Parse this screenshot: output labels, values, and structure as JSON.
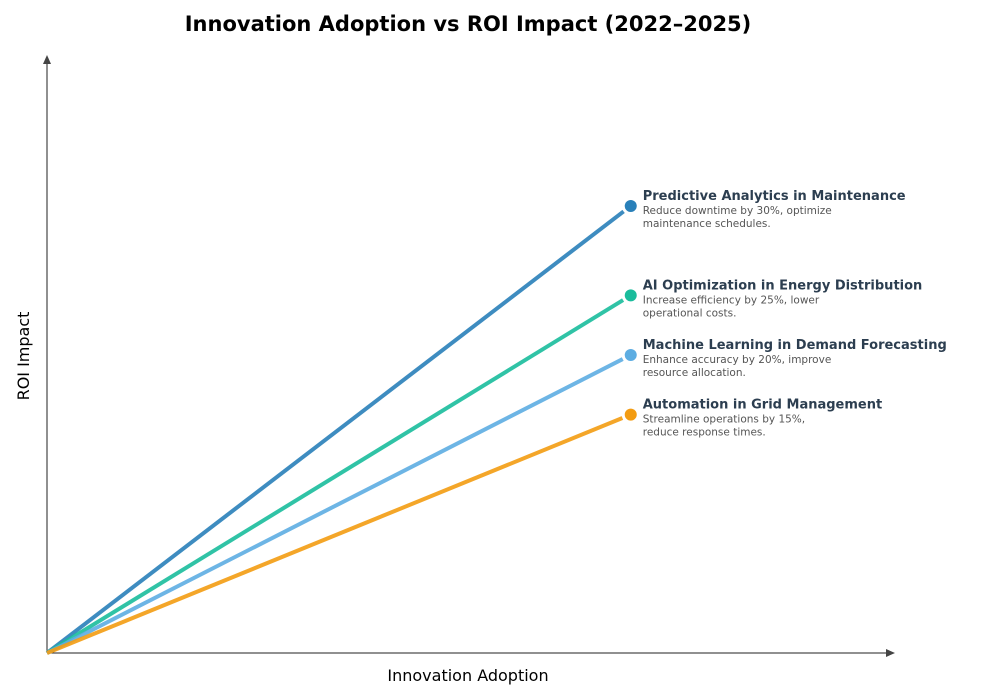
{
  "chart_data": {
    "type": "line",
    "title": "Innovation Adoption vs ROI Impact (2022–2025)",
    "xlabel": "Innovation Adoption",
    "ylabel": "ROI Impact",
    "xlim": [
      0,
      10
    ],
    "ylim": [
      0,
      10
    ],
    "grid": false,
    "ticks": false,
    "series": [
      {
        "name": "Predictive Analytics in Maintenance",
        "description": [
          "Reduce downtime by 30%, optimize",
          "maintenance schedules."
        ],
        "color": "#2980b9",
        "x": [
          0,
          6.9
        ],
        "y": [
          0,
          7.5
        ]
      },
      {
        "name": "AI Optimization in Energy Distribution",
        "description": [
          "Increase efficiency by 25%, lower",
          "operational costs."
        ],
        "color": "#1abc9c",
        "x": [
          0,
          6.9
        ],
        "y": [
          0,
          6.0
        ]
      },
      {
        "name": "Machine Learning in Demand Forecasting",
        "description": [
          "Enhance accuracy by 20%, improve",
          "resource allocation."
        ],
        "color": "#5dade2",
        "x": [
          0,
          6.9
        ],
        "y": [
          0,
          5.0
        ]
      },
      {
        "name": "Automation in Grid Management",
        "description": [
          "Streamline operations by 15%,",
          "reduce response times."
        ],
        "color": "#f39c12",
        "x": [
          0,
          6.9
        ],
        "y": [
          0,
          4.0
        ]
      }
    ]
  }
}
